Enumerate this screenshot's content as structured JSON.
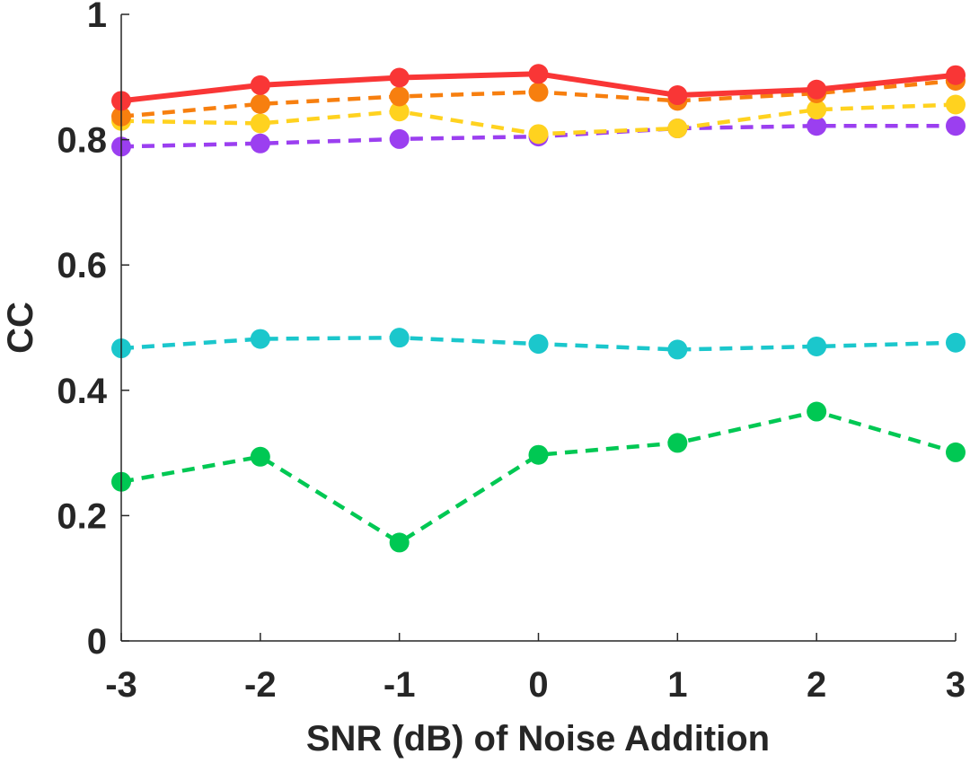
{
  "chart_data": {
    "type": "line",
    "title": "",
    "xlabel": "SNR (dB) of Noise Addition",
    "ylabel": "CC",
    "x": [
      -3,
      -2,
      -1,
      0,
      1,
      2,
      3
    ],
    "x_tick_labels": [
      "-3",
      "-2",
      "-1",
      "0",
      "1",
      "2",
      "3"
    ],
    "xlim": [
      -3,
      3
    ],
    "ylim": [
      0,
      1
    ],
    "y_ticks": [
      0,
      0.2,
      0.4,
      0.6,
      0.8,
      1
    ],
    "y_tick_labels": [
      "0",
      "0.2",
      "0.4",
      "0.6",
      "0.8",
      "1"
    ],
    "grid": false,
    "legend": "none",
    "series": [
      {
        "color": "#00c853",
        "style": "dashed",
        "values": [
          0.254,
          0.294,
          0.157,
          0.297,
          0.316,
          0.366,
          0.301
        ]
      },
      {
        "color": "#1bc7cc",
        "style": "dashed",
        "values": [
          0.467,
          0.482,
          0.484,
          0.474,
          0.465,
          0.47,
          0.476
        ]
      },
      {
        "color": "#9b3ff0",
        "style": "dashed",
        "values": [
          0.789,
          0.794,
          0.801,
          0.805,
          0.818,
          0.822,
          0.822
        ]
      },
      {
        "color": "#ffd21f",
        "style": "dashed",
        "values": [
          0.83,
          0.826,
          0.845,
          0.809,
          0.818,
          0.848,
          0.856
        ]
      },
      {
        "color": "#f77f0f",
        "style": "dashed",
        "values": [
          0.837,
          0.857,
          0.869,
          0.876,
          0.862,
          0.874,
          0.894
        ]
      },
      {
        "color": "#f93636",
        "style": "solid",
        "values": [
          0.862,
          0.887,
          0.899,
          0.905,
          0.871,
          0.88,
          0.903
        ]
      }
    ]
  }
}
